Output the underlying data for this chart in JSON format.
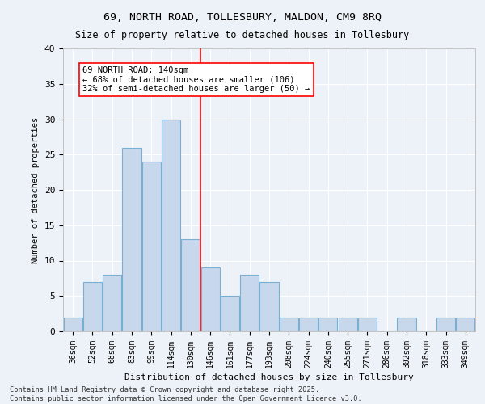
{
  "title_line1": "69, NORTH ROAD, TOLLESBURY, MALDON, CM9 8RQ",
  "title_line2": "Size of property relative to detached houses in Tollesbury",
  "xlabel": "Distribution of detached houses by size in Tollesbury",
  "ylabel": "Number of detached properties",
  "bar_color": "#c8d8ec",
  "bar_edge_color": "#7aafd4",
  "categories": [
    "36sqm",
    "52sqm",
    "68sqm",
    "83sqm",
    "99sqm",
    "114sqm",
    "130sqm",
    "146sqm",
    "161sqm",
    "177sqm",
    "193sqm",
    "208sqm",
    "224sqm",
    "240sqm",
    "255sqm",
    "271sqm",
    "286sqm",
    "302sqm",
    "318sqm",
    "333sqm",
    "349sqm"
  ],
  "values": [
    2,
    7,
    8,
    26,
    24,
    30,
    13,
    9,
    5,
    8,
    7,
    2,
    2,
    2,
    2,
    2,
    0,
    2,
    0,
    2,
    2
  ],
  "annotation_text": "69 NORTH ROAD: 140sqm\n← 68% of detached houses are smaller (106)\n32% of semi-detached houses are larger (50) →",
  "vline_x": 6.5,
  "background_color": "#edf2f8",
  "grid_color": "#ffffff",
  "footer_text": "Contains HM Land Registry data © Crown copyright and database right 2025.\nContains public sector information licensed under the Open Government Licence v3.0.",
  "ylim": [
    0,
    40
  ],
  "yticks": [
    0,
    5,
    10,
    15,
    20,
    25,
    30,
    35,
    40
  ]
}
